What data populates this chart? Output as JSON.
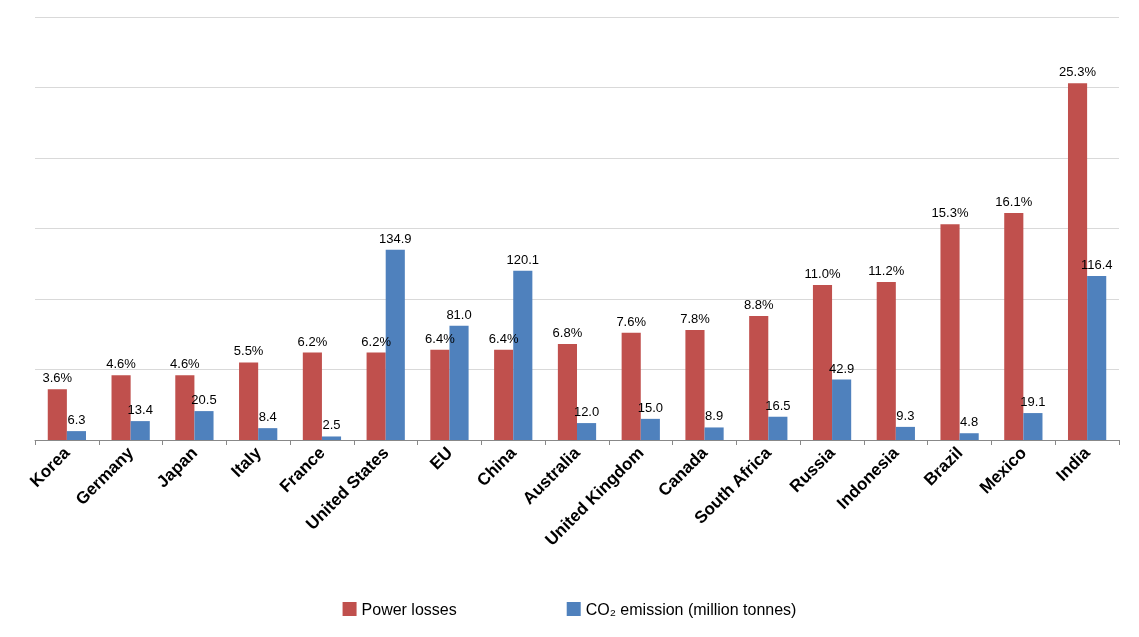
{
  "chart_data": {
    "type": "bar",
    "categories": [
      "Korea",
      "Germany",
      "Japan",
      "Italy",
      "France",
      "United States",
      "EU",
      "China",
      "Australia",
      "United Kingdom",
      "Canada",
      "South Africa",
      "Russia",
      "Indonesia",
      "Brazil",
      "Mexico",
      "India"
    ],
    "series": [
      {
        "name": "Power losses",
        "color": "#c0504d",
        "values": [
          3.6,
          4.6,
          4.6,
          5.5,
          6.2,
          6.2,
          6.4,
          6.4,
          6.8,
          7.6,
          7.8,
          8.8,
          11.0,
          11.2,
          15.3,
          16.1,
          25.3
        ],
        "value_labels": [
          "3.6%",
          "4.6%",
          "4.6%",
          "5.5%",
          "6.2%",
          "6.2%",
          "6.4%",
          "6.4%",
          "6.8%",
          "7.6%",
          "7.8%",
          "8.8%",
          "11.0%",
          "11.2%",
          "15.3%",
          "16.1%",
          "25.3%"
        ]
      },
      {
        "name": "CO₂ emission (million tonnes)",
        "color": "#4f81bd",
        "axis": "y2",
        "values": [
          6.3,
          13.4,
          20.5,
          8.4,
          2.5,
          134.9,
          81.0,
          120.1,
          12.0,
          15.0,
          8.9,
          16.5,
          42.9,
          9.3,
          4.8,
          19.1,
          116.4
        ],
        "value_labels": [
          "6.3",
          "13.4",
          "20.5",
          "8.4",
          "2.5",
          "134.9",
          "81.0",
          "120.1",
          "12.0",
          "15.0",
          "8.9",
          "16.5",
          "42.9",
          "9.3",
          "4.8",
          "19.1",
          "116.4"
        ]
      }
    ],
    "ylim": [
      0,
      30
    ],
    "yticks": [
      {
        "value": 0,
        "label": null
      },
      {
        "value": 5,
        "label": null
      },
      {
        "value": 10,
        "label": null
      },
      {
        "value": 15,
        "label": null
      },
      {
        "value": 20,
        "label": null
      },
      {
        "value": 25,
        "label": null
      },
      {
        "value": 30,
        "label": null
      }
    ],
    "y2lim": [
      0,
      300
    ],
    "grid": "y",
    "legend": "bottom",
    "tick_labels": "x"
  }
}
